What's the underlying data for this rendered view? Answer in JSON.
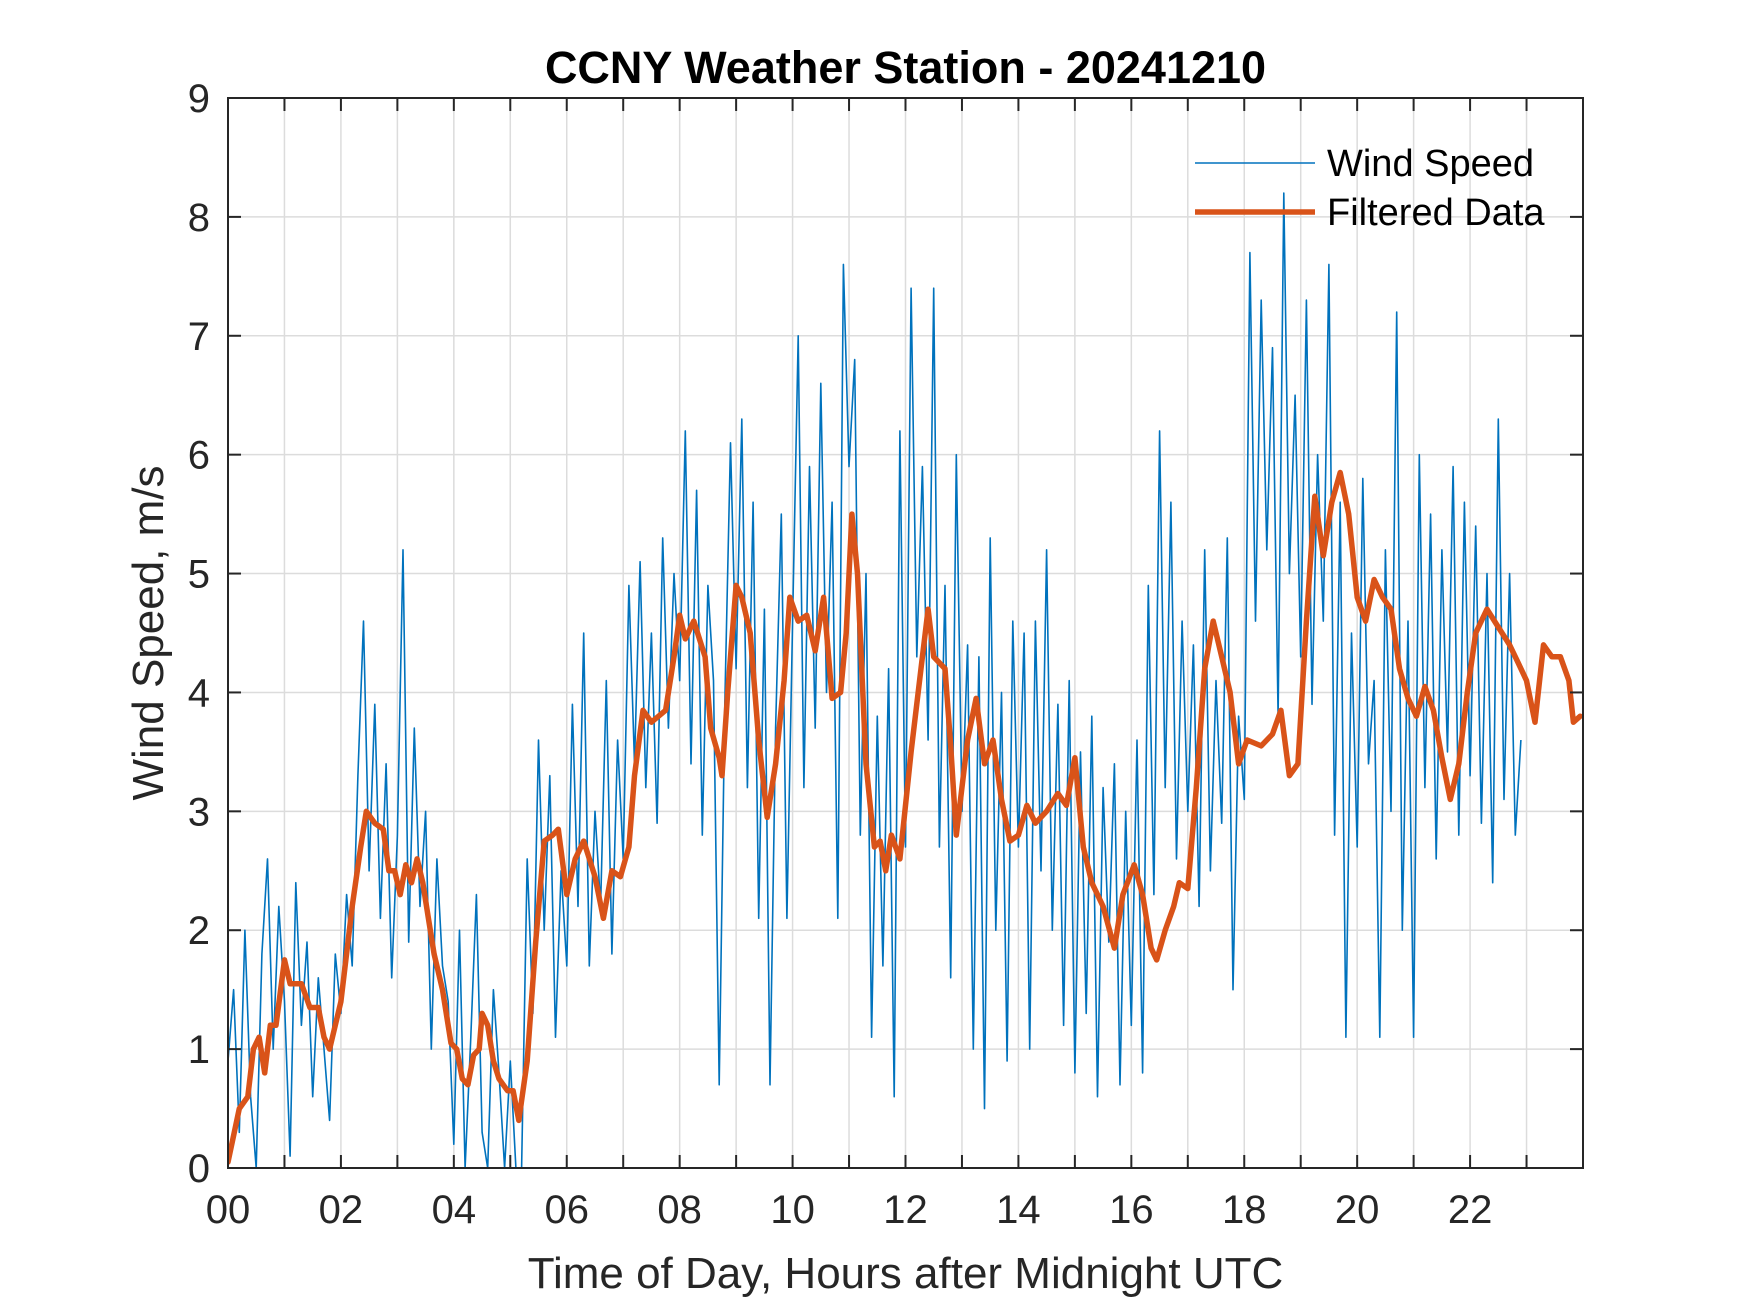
{
  "chart_data": {
    "type": "line",
    "title": "CCNY Weather Station - 20241210",
    "xlabel": "Time of Day, Hours after Midnight UTC",
    "ylabel": "Wind Speed, m/s",
    "xlim": [
      0,
      24
    ],
    "ylim": [
      0,
      9
    ],
    "xticks": [
      0,
      2,
      4,
      6,
      8,
      10,
      12,
      14,
      16,
      18,
      20,
      22
    ],
    "xtick_labels": [
      "00",
      "02",
      "04",
      "06",
      "08",
      "10",
      "12",
      "14",
      "16",
      "18",
      "20",
      "22"
    ],
    "yticks": [
      0,
      1,
      2,
      3,
      4,
      5,
      6,
      7,
      8,
      9
    ],
    "ytick_labels": [
      "0",
      "1",
      "2",
      "3",
      "4",
      "5",
      "6",
      "7",
      "8",
      "9"
    ],
    "grid": true,
    "minor_x_gridlines_every_hours": 1,
    "legend_position": "top-right",
    "series": [
      {
        "name": "Wind Speed",
        "color": "#0072BD",
        "style": "thin",
        "x_start": 0,
        "x_step": 0.1,
        "values": [
          0.9,
          1.5,
          0.3,
          2.0,
          0.6,
          0.0,
          1.8,
          2.6,
          1.0,
          2.2,
          1.4,
          0.1,
          2.4,
          1.2,
          1.9,
          0.6,
          1.6,
          1.0,
          0.4,
          1.8,
          1.3,
          2.3,
          1.7,
          3.3,
          4.6,
          2.5,
          3.9,
          2.1,
          3.4,
          1.6,
          2.8,
          5.2,
          1.9,
          3.7,
          2.2,
          3.0,
          1.0,
          2.6,
          1.7,
          1.4,
          0.2,
          2.0,
          0.0,
          1.1,
          2.3,
          0.3,
          0.0,
          1.5,
          0.8,
          0.0,
          0.9,
          0.0,
          0.0,
          2.6,
          1.3,
          3.6,
          2.0,
          3.3,
          1.1,
          2.5,
          1.7,
          3.9,
          2.2,
          4.5,
          1.7,
          3.0,
          2.2,
          4.1,
          1.8,
          3.6,
          2.6,
          4.9,
          3.4,
          5.1,
          3.2,
          4.5,
          2.9,
          5.3,
          3.7,
          5.0,
          4.1,
          6.2,
          3.4,
          5.7,
          2.8,
          4.9,
          4.1,
          0.7,
          3.9,
          6.1,
          4.2,
          6.3,
          3.2,
          5.6,
          2.1,
          4.7,
          0.7,
          3.7,
          5.5,
          2.1,
          4.6,
          7.0,
          3.2,
          5.9,
          3.7,
          6.6,
          4.0,
          5.6,
          2.1,
          7.6,
          5.9,
          6.8,
          2.8,
          5.0,
          1.1,
          3.8,
          1.7,
          4.2,
          0.6,
          6.2,
          2.7,
          7.4,
          4.3,
          5.9,
          3.6,
          7.4,
          2.7,
          4.9,
          1.6,
          6.0,
          3.0,
          4.4,
          1.0,
          4.3,
          0.5,
          5.3,
          2.0,
          4.0,
          0.9,
          4.6,
          2.7,
          4.5,
          1.0,
          4.6,
          2.5,
          5.2,
          2.0,
          3.9,
          1.2,
          4.1,
          0.8,
          3.5,
          1.3,
          3.8,
          0.6,
          3.2,
          1.9,
          3.4,
          0.7,
          3.0,
          1.2,
          3.6,
          0.8,
          4.9,
          2.3,
          6.2,
          3.2,
          5.6,
          2.6,
          4.6,
          3.0,
          4.4,
          2.2,
          5.2,
          2.5,
          4.1,
          2.9,
          5.3,
          1.5,
          3.8,
          3.1,
          7.7,
          4.6,
          7.3,
          5.2,
          6.9,
          3.8,
          8.2,
          5.0,
          6.5,
          4.3,
          7.3,
          3.9,
          6.0,
          4.6,
          7.6,
          2.8,
          5.6,
          1.1,
          4.5,
          2.7,
          5.8,
          3.4,
          4.1,
          1.1,
          5.2,
          3.0,
          7.2,
          2.0,
          4.6,
          1.1,
          6.0,
          3.2,
          5.5,
          2.6,
          5.2,
          3.5,
          5.9,
          2.8,
          5.6,
          3.3,
          5.4,
          2.9,
          5.0,
          2.4,
          6.3,
          3.1,
          5.0,
          2.8,
          3.6
        ]
      },
      {
        "name": "Filtered Data",
        "color": "#D95319",
        "style": "thick",
        "points": [
          [
            0.0,
            0.05
          ],
          [
            0.2,
            0.5
          ],
          [
            0.35,
            0.6
          ],
          [
            0.45,
            1.0
          ],
          [
            0.55,
            1.1
          ],
          [
            0.65,
            0.8
          ],
          [
            0.75,
            1.2
          ],
          [
            0.85,
            1.2
          ],
          [
            1.0,
            1.75
          ],
          [
            1.1,
            1.55
          ],
          [
            1.3,
            1.55
          ],
          [
            1.45,
            1.35
          ],
          [
            1.6,
            1.35
          ],
          [
            1.7,
            1.1
          ],
          [
            1.8,
            1.0
          ],
          [
            2.0,
            1.4
          ],
          [
            2.2,
            2.2
          ],
          [
            2.35,
            2.7
          ],
          [
            2.45,
            3.0
          ],
          [
            2.6,
            2.9
          ],
          [
            2.75,
            2.85
          ],
          [
            2.85,
            2.5
          ],
          [
            2.95,
            2.5
          ],
          [
            3.05,
            2.3
          ],
          [
            3.15,
            2.55
          ],
          [
            3.25,
            2.4
          ],
          [
            3.35,
            2.6
          ],
          [
            3.45,
            2.4
          ],
          [
            3.55,
            2.1
          ],
          [
            3.65,
            1.8
          ],
          [
            3.8,
            1.5
          ],
          [
            3.95,
            1.05
          ],
          [
            4.05,
            1.0
          ],
          [
            4.15,
            0.75
          ],
          [
            4.25,
            0.7
          ],
          [
            4.35,
            0.95
          ],
          [
            4.45,
            1.0
          ],
          [
            4.5,
            1.3
          ],
          [
            4.6,
            1.2
          ],
          [
            4.7,
            0.9
          ],
          [
            4.8,
            0.75
          ],
          [
            4.95,
            0.65
          ],
          [
            5.05,
            0.65
          ],
          [
            5.15,
            0.4
          ],
          [
            5.3,
            0.9
          ],
          [
            5.45,
            1.9
          ],
          [
            5.6,
            2.75
          ],
          [
            5.75,
            2.8
          ],
          [
            5.85,
            2.85
          ],
          [
            6.0,
            2.3
          ],
          [
            6.15,
            2.6
          ],
          [
            6.3,
            2.75
          ],
          [
            6.5,
            2.45
          ],
          [
            6.65,
            2.1
          ],
          [
            6.8,
            2.5
          ],
          [
            6.95,
            2.45
          ],
          [
            7.1,
            2.7
          ],
          [
            7.2,
            3.3
          ],
          [
            7.35,
            3.85
          ],
          [
            7.5,
            3.75
          ],
          [
            7.75,
            3.85
          ],
          [
            7.9,
            4.3
          ],
          [
            8.0,
            4.65
          ],
          [
            8.1,
            4.45
          ],
          [
            8.25,
            4.6
          ],
          [
            8.45,
            4.3
          ],
          [
            8.55,
            3.7
          ],
          [
            8.7,
            3.45
          ],
          [
            8.75,
            3.3
          ],
          [
            8.85,
            4.0
          ],
          [
            9.0,
            4.9
          ],
          [
            9.1,
            4.8
          ],
          [
            9.25,
            4.5
          ],
          [
            9.4,
            3.6
          ],
          [
            9.55,
            2.95
          ],
          [
            9.7,
            3.4
          ],
          [
            9.85,
            4.1
          ],
          [
            9.95,
            4.8
          ],
          [
            10.1,
            4.6
          ],
          [
            10.25,
            4.65
          ],
          [
            10.4,
            4.35
          ],
          [
            10.55,
            4.8
          ],
          [
            10.7,
            3.95
          ],
          [
            10.85,
            4.0
          ],
          [
            10.95,
            4.5
          ],
          [
            11.05,
            5.5
          ],
          [
            11.15,
            5.0
          ],
          [
            11.3,
            3.4
          ],
          [
            11.45,
            2.7
          ],
          [
            11.55,
            2.75
          ],
          [
            11.65,
            2.5
          ],
          [
            11.75,
            2.8
          ],
          [
            11.9,
            2.6
          ],
          [
            12.1,
            3.5
          ],
          [
            12.3,
            4.3
          ],
          [
            12.4,
            4.7
          ],
          [
            12.5,
            4.3
          ],
          [
            12.7,
            4.2
          ],
          [
            12.8,
            3.55
          ],
          [
            12.9,
            2.8
          ],
          [
            13.1,
            3.6
          ],
          [
            13.25,
            3.95
          ],
          [
            13.4,
            3.4
          ],
          [
            13.55,
            3.6
          ],
          [
            13.7,
            3.1
          ],
          [
            13.85,
            2.75
          ],
          [
            14.0,
            2.8
          ],
          [
            14.15,
            3.05
          ],
          [
            14.3,
            2.9
          ],
          [
            14.5,
            3.0
          ],
          [
            14.7,
            3.15
          ],
          [
            14.85,
            3.05
          ],
          [
            15.0,
            3.45
          ],
          [
            15.15,
            2.7
          ],
          [
            15.3,
            2.4
          ],
          [
            15.5,
            2.2
          ],
          [
            15.7,
            1.85
          ],
          [
            15.85,
            2.3
          ],
          [
            16.05,
            2.55
          ],
          [
            16.2,
            2.3
          ],
          [
            16.35,
            1.85
          ],
          [
            16.45,
            1.75
          ],
          [
            16.6,
            2.0
          ],
          [
            16.75,
            2.2
          ],
          [
            16.85,
            2.4
          ],
          [
            17.0,
            2.35
          ],
          [
            17.15,
            3.2
          ],
          [
            17.3,
            4.2
          ],
          [
            17.45,
            4.6
          ],
          [
            17.6,
            4.3
          ],
          [
            17.75,
            4.0
          ],
          [
            17.9,
            3.4
          ],
          [
            18.05,
            3.6
          ],
          [
            18.3,
            3.55
          ],
          [
            18.5,
            3.65
          ],
          [
            18.65,
            3.85
          ],
          [
            18.8,
            3.3
          ],
          [
            18.95,
            3.4
          ],
          [
            19.1,
            4.6
          ],
          [
            19.25,
            5.65
          ],
          [
            19.4,
            5.15
          ],
          [
            19.55,
            5.6
          ],
          [
            19.7,
            5.85
          ],
          [
            19.85,
            5.5
          ],
          [
            20.0,
            4.8
          ],
          [
            20.15,
            4.6
          ],
          [
            20.3,
            4.95
          ],
          [
            20.45,
            4.8
          ],
          [
            20.6,
            4.7
          ],
          [
            20.75,
            4.2
          ],
          [
            20.9,
            3.95
          ],
          [
            21.05,
            3.8
          ],
          [
            21.2,
            4.05
          ],
          [
            21.35,
            3.85
          ],
          [
            21.5,
            3.45
          ],
          [
            21.65,
            3.1
          ],
          [
            21.8,
            3.4
          ],
          [
            21.95,
            4.0
          ],
          [
            22.1,
            4.5
          ],
          [
            22.3,
            4.7
          ],
          [
            22.5,
            4.55
          ],
          [
            22.7,
            4.4
          ],
          [
            22.85,
            4.25
          ],
          [
            23.0,
            4.1
          ],
          [
            23.15,
            3.75
          ],
          [
            23.3,
            4.4
          ],
          [
            23.45,
            4.3
          ],
          [
            23.6,
            4.3
          ],
          [
            23.75,
            4.1
          ],
          [
            23.83,
            3.75
          ],
          [
            23.95,
            3.8
          ]
        ]
      }
    ],
    "legend": [
      "Wind Speed",
      "Filtered Data"
    ]
  }
}
